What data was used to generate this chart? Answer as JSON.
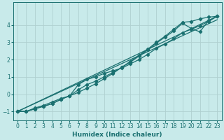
{
  "xlabel": "Humidex (Indice chaleur)",
  "bg_color": "#c8eaea",
  "grid_color": "#b0d0d0",
  "line_color": "#1a7070",
  "xlim": [
    -0.5,
    23.5
  ],
  "ylim": [
    -1.5,
    5.3
  ],
  "yticks": [
    -1,
    0,
    1,
    2,
    3,
    4
  ],
  "xticks": [
    0,
    1,
    2,
    3,
    4,
    5,
    6,
    7,
    8,
    9,
    10,
    11,
    12,
    13,
    14,
    15,
    16,
    17,
    18,
    19,
    20,
    21,
    22,
    23
  ],
  "line1_x": [
    0,
    1,
    2,
    3,
    4,
    5,
    6,
    7,
    8,
    9,
    10,
    11,
    12,
    13,
    14,
    15,
    16,
    17,
    18,
    19,
    20,
    21,
    22,
    23
  ],
  "line1_y": [
    -1.0,
    -1.0,
    -0.8,
    -0.65,
    -0.45,
    -0.25,
    -0.1,
    0.1,
    0.35,
    0.6,
    0.9,
    1.2,
    1.55,
    1.9,
    2.25,
    2.6,
    3.0,
    3.35,
    3.75,
    4.15,
    4.2,
    4.35,
    4.45,
    4.5
  ],
  "line2_x": [
    0,
    1,
    2,
    3,
    4,
    5,
    6,
    7,
    8,
    9,
    10,
    11,
    12,
    13,
    14,
    15,
    16,
    17,
    18,
    19,
    20,
    21,
    22,
    23
  ],
  "line2_y": [
    -1.0,
    -1.0,
    -0.85,
    -0.7,
    -0.55,
    -0.3,
    -0.1,
    0.55,
    0.85,
    1.0,
    1.2,
    1.35,
    1.5,
    1.75,
    2.0,
    2.3,
    2.65,
    2.9,
    3.2,
    3.55,
    3.75,
    3.95,
    4.2,
    4.5
  ],
  "line3_x": [
    0,
    1,
    2,
    3,
    4,
    5,
    6,
    7,
    8,
    9,
    10,
    11,
    12,
    13,
    14,
    15,
    16,
    17,
    18,
    19,
    20,
    21,
    22,
    23
  ],
  "line3_y": [
    -1.0,
    -1.0,
    -0.85,
    -0.7,
    -0.55,
    -0.3,
    -0.1,
    0.25,
    0.55,
    0.75,
    1.0,
    1.25,
    1.55,
    1.85,
    2.2,
    2.55,
    2.95,
    3.3,
    3.65,
    4.1,
    3.8,
    3.6,
    4.25,
    4.5
  ],
  "ref_line1": [
    -1.0,
    4.5
  ],
  "ref_line2": [
    -1.0,
    4.5
  ],
  "marker": "D",
  "marker_size": 2.2,
  "line_width": 0.9,
  "tick_fontsize": 5.5,
  "label_fontsize": 6.5
}
